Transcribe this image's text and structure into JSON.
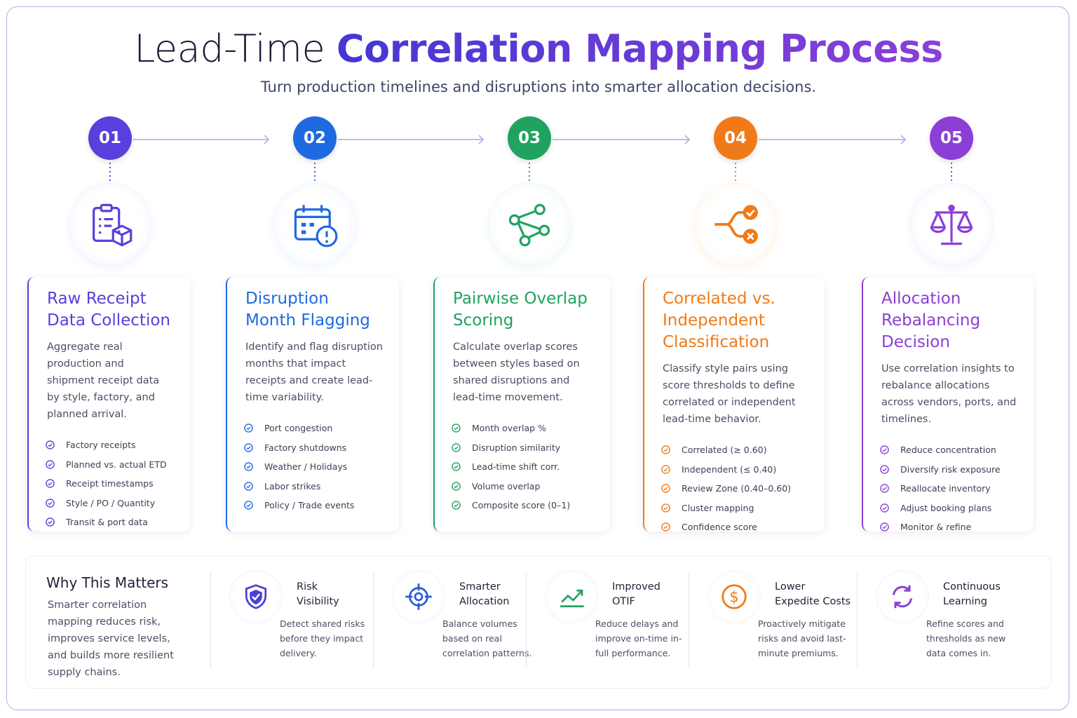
{
  "header": {
    "title_lead": "Lead-Time",
    "title_highlight": "Correlation Mapping Process",
    "subtitle": "Turn production timelines and disruptions into smarter allocation decisions."
  },
  "steps": [
    {
      "number": "01",
      "title": "Raw Receipt Data Collection",
      "description": "Aggregate real production and shipment receipt data by style, factory, and planned arrival.",
      "items": [
        "Factory receipts",
        "Planned vs. actual ETD",
        "Receipt timestamps",
        "Style / PO / Quantity",
        "Transit & port data"
      ]
    },
    {
      "number": "02",
      "title": "Disruption Month Flagging",
      "description": "Identify and flag disruption months that impact receipts and create lead-time variability.",
      "items": [
        "Port congestion",
        "Factory shutdowns",
        "Weather / Holidays",
        "Labor strikes",
        "Policy / Trade events"
      ]
    },
    {
      "number": "03",
      "title": "Pairwise Overlap Scoring",
      "description": "Calculate overlap scores between styles based on shared disruptions and lead-time movement.",
      "items": [
        "Month overlap %",
        "Disruption similarity",
        "Lead-time shift corr.",
        "Volume overlap",
        "Composite score (0–1)"
      ]
    },
    {
      "number": "04",
      "title": "Correlated vs. Independent Classification",
      "description": "Classify style pairs using score thresholds to define correlated or independent lead-time behavior.",
      "items": [
        "Correlated (≥ 0.60)",
        "Independent (≤ 0.40)",
        "Review Zone (0.40–0.60)",
        "Cluster mapping",
        "Confidence score"
      ]
    },
    {
      "number": "05",
      "title": "Allocation Rebalancing Decision",
      "description": "Use correlation insights to rebalance allocations across vendors, ports, and timelines.",
      "items": [
        "Reduce concentration",
        "Diversify risk exposure",
        "Reallocate inventory",
        "Adjust booking plans",
        "Monitor & refine"
      ]
    }
  ],
  "why": {
    "title": "Why This Matters",
    "description": "Smarter correlation mapping reduces risk, improves service levels, and builds more resilient supply chains.",
    "benefits": [
      {
        "title": "Risk Visibility",
        "description": "Detect shared risks before they impact delivery."
      },
      {
        "title": "Smarter Allocation",
        "description": "Balance volumes based on real correlation patterns."
      },
      {
        "title": "Improved OTIF",
        "description": "Reduce delays and improve on-time in-full performance."
      },
      {
        "title": "Lower Expedite Costs",
        "description": "Proactively mitigate risks and avoid last-minute premiums."
      },
      {
        "title": "Continuous Learning",
        "description": "Refine scores and thresholds as new data comes in."
      }
    ]
  }
}
